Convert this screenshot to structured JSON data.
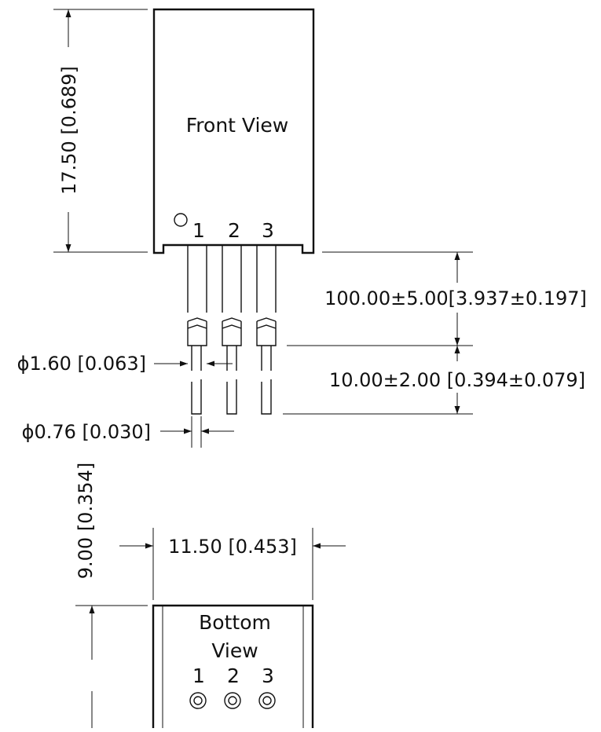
{
  "front_view": {
    "title": "Front View",
    "pins": [
      "1",
      "2",
      "3"
    ]
  },
  "bottom_view": {
    "title_line1": "Bottom",
    "title_line2": "View",
    "pins": [
      "1",
      "2",
      "3"
    ]
  },
  "dimensions": {
    "height": "17.50 [0.689]",
    "lead_length": "100.00±5.00[3.937±0.197]",
    "tip_length": "10.00±2.00 [0.394±0.079]",
    "lead_diameter": "ϕ1.60 [0.063]",
    "tip_diameter": "ϕ0.76 [0.030]",
    "width": "11.50 [0.453]",
    "depth": "9.00 [0.354]"
  }
}
